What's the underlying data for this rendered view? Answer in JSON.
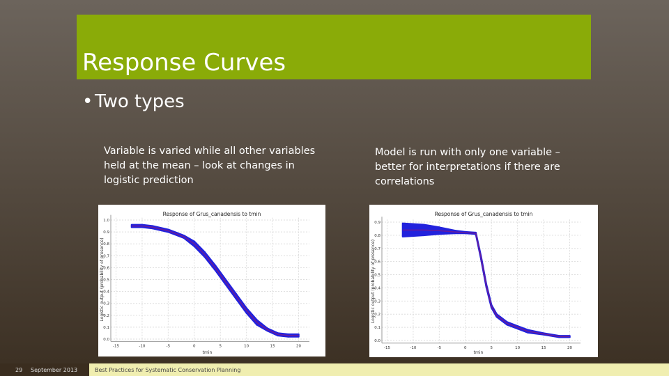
{
  "slide": {
    "title": "Response Curves",
    "bullet": "Two types",
    "captions": [
      [
        "Variable is varied while all other variables",
        "held at the mean – look at changes in",
        "logistic prediction"
      ],
      [
        "Model is run with only one variable –",
        "better for interpretations if there are",
        "correlations"
      ]
    ]
  },
  "footer": {
    "page": "29",
    "date": "September 2013",
    "course": "Best Practices for Systematic Conservation Planning"
  },
  "chart_data": [
    {
      "type": "line",
      "title": "Response of Grus_canadensis to tmin",
      "x_label": "tmin",
      "y_label": "Logistic output (probability of presence)",
      "color": "#6a1b9a",
      "band_color": "#2222dd",
      "grid": true,
      "x": [
        -12,
        -10,
        -8,
        -5,
        -2,
        0,
        2,
        4,
        6,
        8,
        10,
        12,
        14,
        16,
        18,
        20
      ],
      "values": [
        0.95,
        0.95,
        0.94,
        0.91,
        0.86,
        0.8,
        0.71,
        0.6,
        0.48,
        0.36,
        0.24,
        0.14,
        0.08,
        0.04,
        0.03,
        0.03
      ],
      "upper": [
        0.96,
        0.96,
        0.95,
        0.92,
        0.87,
        0.82,
        0.73,
        0.62,
        0.5,
        0.38,
        0.26,
        0.16,
        0.09,
        0.05,
        0.04,
        0.04
      ],
      "lower": [
        0.94,
        0.94,
        0.93,
        0.9,
        0.85,
        0.78,
        0.69,
        0.58,
        0.46,
        0.34,
        0.22,
        0.12,
        0.07,
        0.03,
        0.02,
        0.02
      ],
      "xlim": [
        -16,
        21
      ],
      "ylim": [
        -0.02,
        1.02
      ],
      "xticks": [
        -15,
        -10,
        -5,
        0,
        5,
        10,
        15,
        20
      ],
      "yticks": [
        {
          "value": 0,
          "label": "0.0"
        },
        {
          "value": 0.1,
          "label": "0.1"
        },
        {
          "value": 0.2,
          "label": "0.2"
        },
        {
          "value": 0.3,
          "label": "0.3"
        },
        {
          "value": 0.4,
          "label": "0.4"
        },
        {
          "value": 0.5,
          "label": "0.5"
        },
        {
          "value": 0.6,
          "label": "0.6"
        },
        {
          "value": 0.7,
          "label": "0.7"
        },
        {
          "value": 0.8,
          "label": "0.8"
        },
        {
          "value": 0.9,
          "label": "0.9"
        },
        {
          "value": 1,
          "label": "1.0"
        }
      ]
    },
    {
      "type": "line",
      "title": "Response of Grus_canadensis to tmin",
      "x_label": "tmin",
      "y_label": "Logistic output (probability of presence)",
      "color": "#6a1b9a",
      "band_color": "#2222dd",
      "grid": true,
      "x": [
        -12,
        -8,
        -5,
        -2,
        0,
        2,
        3,
        4,
        5,
        6,
        8,
        10,
        12,
        15,
        18,
        20
      ],
      "values": [
        0.84,
        0.84,
        0.835,
        0.825,
        0.82,
        0.815,
        0.63,
        0.42,
        0.26,
        0.19,
        0.13,
        0.1,
        0.07,
        0.05,
        0.03,
        0.03
      ],
      "upper": [
        0.89,
        0.88,
        0.86,
        0.835,
        0.825,
        0.82,
        0.64,
        0.43,
        0.27,
        0.2,
        0.14,
        0.11,
        0.08,
        0.055,
        0.035,
        0.035
      ],
      "lower": [
        0.79,
        0.8,
        0.81,
        0.815,
        0.815,
        0.81,
        0.62,
        0.41,
        0.25,
        0.18,
        0.12,
        0.09,
        0.06,
        0.045,
        0.025,
        0.025
      ],
      "xlim": [
        -16,
        21
      ],
      "ylim": [
        -0.02,
        0.92
      ],
      "xticks": [
        -15,
        -10,
        -5,
        0,
        5,
        10,
        15,
        20
      ],
      "yticks": [
        {
          "value": 0,
          "label": "0.0"
        },
        {
          "value": 0.1,
          "label": "0.1"
        },
        {
          "value": 0.2,
          "label": "0.2"
        },
        {
          "value": 0.3,
          "label": "0.3"
        },
        {
          "value": 0.4,
          "label": "0.4"
        },
        {
          "value": 0.5,
          "label": "0.5"
        },
        {
          "value": 0.6,
          "label": "0.6"
        },
        {
          "value": 0.7,
          "label": "0.7"
        },
        {
          "value": 0.8,
          "label": "0.8"
        },
        {
          "value": 0.9,
          "label": "0.9"
        }
      ]
    }
  ]
}
